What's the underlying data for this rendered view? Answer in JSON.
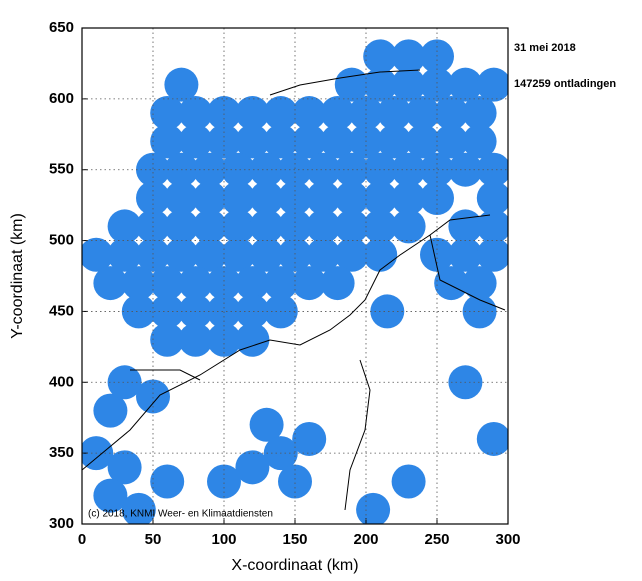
{
  "chart_data": {
    "type": "scatter",
    "xlabel": "X-coordinaat (km)",
    "ylabel": "Y-coordinaat (km)",
    "annotations": [
      "31 mei 2018",
      "147259 ontladingen",
      "(c) 2018, KNMI Weer- en Klimaatdiensten"
    ],
    "color": "#2e86e6",
    "grid": true,
    "xlim": [
      0,
      300
    ],
    "ylim": [
      300,
      650
    ],
    "xticks": [
      0,
      50,
      100,
      150,
      200,
      250,
      300
    ],
    "yticks": [
      300,
      350,
      400,
      450,
      500,
      550,
      600,
      650
    ],
    "x": [
      210,
      230,
      250,
      70,
      190,
      210,
      230,
      250,
      270,
      290,
      60,
      80,
      100,
      120,
      140,
      160,
      180,
      200,
      220,
      240,
      260,
      280,
      60,
      80,
      100,
      120,
      140,
      160,
      180,
      200,
      220,
      240,
      260,
      280,
      50,
      70,
      90,
      110,
      130,
      150,
      170,
      190,
      210,
      230,
      250,
      270,
      290,
      50,
      70,
      90,
      110,
      130,
      150,
      170,
      190,
      210,
      230,
      250,
      290,
      30,
      50,
      70,
      90,
      110,
      130,
      150,
      170,
      190,
      210,
      230,
      270,
      290,
      10,
      30,
      50,
      70,
      90,
      110,
      130,
      150,
      170,
      190,
      210,
      250,
      270,
      290,
      20,
      40,
      60,
      80,
      100,
      120,
      140,
      160,
      180,
      260,
      280,
      40,
      60,
      80,
      100,
      120,
      140,
      215,
      280,
      60,
      80,
      100,
      120,
      20,
      10,
      30,
      20,
      40,
      60,
      130,
      140,
      150,
      160,
      120,
      100,
      205,
      230,
      270,
      290,
      30,
      50
    ],
    "values": [
      630,
      630,
      630,
      610,
      610,
      610,
      610,
      610,
      610,
      610,
      590,
      590,
      590,
      590,
      590,
      590,
      590,
      590,
      590,
      590,
      590,
      590,
      570,
      570,
      570,
      570,
      570,
      570,
      570,
      570,
      570,
      570,
      570,
      570,
      550,
      550,
      550,
      550,
      550,
      550,
      550,
      550,
      550,
      550,
      550,
      550,
      550,
      530,
      530,
      530,
      530,
      530,
      530,
      530,
      530,
      530,
      530,
      530,
      530,
      510,
      510,
      510,
      510,
      510,
      510,
      510,
      510,
      510,
      510,
      510,
      510,
      510,
      490,
      490,
      490,
      490,
      490,
      490,
      490,
      490,
      490,
      490,
      490,
      490,
      490,
      490,
      470,
      470,
      470,
      470,
      470,
      470,
      470,
      470,
      470,
      470,
      470,
      450,
      450,
      450,
      450,
      450,
      450,
      450,
      450,
      430,
      430,
      430,
      430,
      380,
      350,
      340,
      320,
      310,
      330,
      370,
      350,
      330,
      360,
      340,
      330,
      310,
      330,
      400,
      360,
      400,
      390
    ]
  }
}
